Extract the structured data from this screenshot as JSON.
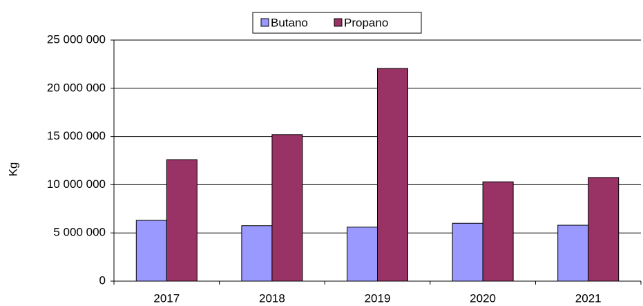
{
  "chart_data": {
    "type": "bar",
    "y_label": "Kg",
    "categories": [
      "2017",
      "2018",
      "2019",
      "2020",
      "2021"
    ],
    "series": [
      {
        "name": "Butano",
        "color": "#9999ff",
        "values": [
          6300000,
          5750000,
          5600000,
          6000000,
          5800000
        ]
      },
      {
        "name": "Propano",
        "color": "#993366",
        "values": [
          12600000,
          15200000,
          22050000,
          10300000,
          10750000
        ]
      }
    ],
    "ylim": [
      0,
      25000000
    ],
    "yticks": [
      0,
      {
        "value": 5000000,
        "label": "5 000 000"
      },
      {
        "value": 10000000,
        "label": "10 000 000"
      },
      {
        "value": 15000000,
        "label": "15 000 000"
      },
      {
        "value": 20000000,
        "label": "20 000 000"
      },
      {
        "value": 25000000,
        "label": "25 000 000"
      }
    ],
    "grid": true,
    "legend": "top"
  }
}
